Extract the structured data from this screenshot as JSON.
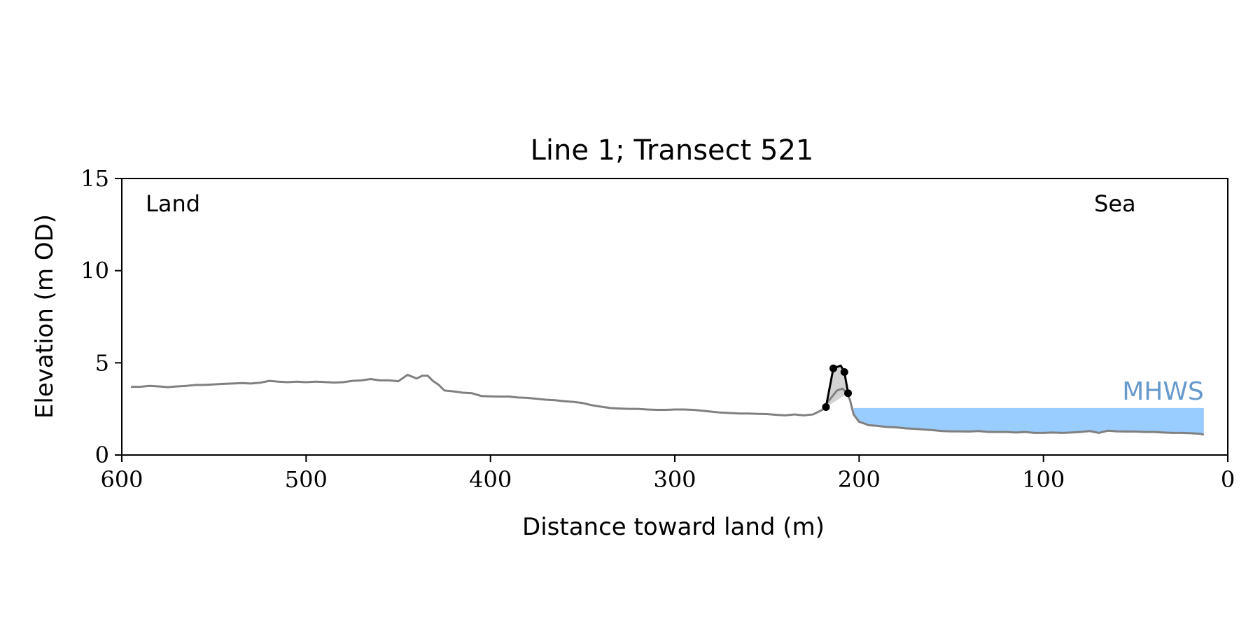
{
  "chart_data": {
    "type": "line",
    "title": "Line 1; Transect 521",
    "xlabel": "Distance toward land (m)",
    "ylabel": "Elevation (m OD)",
    "xlim": [
      600,
      0
    ],
    "ylim": [
      0,
      15
    ],
    "x_reversed": true,
    "xticks": [
      600,
      500,
      400,
      300,
      200,
      100,
      0
    ],
    "yticks": [
      0,
      5,
      10,
      15
    ],
    "grid": false,
    "annotations": {
      "left": "Land",
      "right": "Sea",
      "mhws": "MHWS"
    },
    "colors": {
      "profile": "#808080",
      "dune": "#000000",
      "dune_fill": "#d3d3d3",
      "mhws_fill": "#99ccff",
      "mhws_text": "#6699cc"
    },
    "mhws": {
      "elevation": 2.55,
      "x_from": 203,
      "x_to": 13
    },
    "series": [
      {
        "role": "profile",
        "x": [
          595,
          590,
          585,
          580,
          575,
          570,
          565,
          560,
          555,
          550,
          545,
          540,
          535,
          530,
          525,
          520,
          515,
          510,
          505,
          500,
          495,
          490,
          485,
          480,
          475,
          470,
          465,
          460,
          455,
          450,
          445,
          440,
          437,
          434,
          431,
          428,
          425,
          420,
          415,
          410,
          405,
          400,
          395,
          390,
          385,
          380,
          375,
          370,
          365,
          360,
          355,
          350,
          345,
          340,
          335,
          330,
          325,
          320,
          315,
          310,
          305,
          300,
          295,
          290,
          285,
          280,
          275,
          270,
          265,
          260,
          255,
          250,
          245,
          240,
          235,
          230,
          225,
          220,
          216,
          212,
          209,
          207,
          205,
          203,
          200,
          197,
          195,
          190,
          185,
          180,
          175,
          170,
          165,
          160,
          155,
          150,
          145,
          140,
          135,
          130,
          125,
          120,
          115,
          110,
          105,
          100,
          95,
          90,
          85,
          80,
          75,
          70,
          65,
          60,
          55,
          50,
          45,
          40,
          35,
          30,
          25,
          20,
          15,
          13
        ],
        "y": [
          3.7,
          3.7,
          3.75,
          3.72,
          3.68,
          3.72,
          3.75,
          3.8,
          3.8,
          3.83,
          3.86,
          3.88,
          3.9,
          3.88,
          3.92,
          4.02,
          3.98,
          3.95,
          3.98,
          3.95,
          3.98,
          3.96,
          3.93,
          3.95,
          4.02,
          4.05,
          4.12,
          4.05,
          4.05,
          4.0,
          4.35,
          4.15,
          4.3,
          4.3,
          4.0,
          3.8,
          3.5,
          3.45,
          3.38,
          3.35,
          3.2,
          3.18,
          3.17,
          3.17,
          3.12,
          3.1,
          3.05,
          3.0,
          2.97,
          2.92,
          2.88,
          2.82,
          2.7,
          2.62,
          2.55,
          2.52,
          2.5,
          2.5,
          2.47,
          2.45,
          2.45,
          2.47,
          2.47,
          2.45,
          2.4,
          2.35,
          2.3,
          2.28,
          2.25,
          2.25,
          2.23,
          2.22,
          2.18,
          2.15,
          2.2,
          2.15,
          2.2,
          2.45,
          3.0,
          3.5,
          3.6,
          3.4,
          3.0,
          2.2,
          1.8,
          1.7,
          1.62,
          1.58,
          1.52,
          1.5,
          1.45,
          1.42,
          1.38,
          1.35,
          1.3,
          1.28,
          1.28,
          1.27,
          1.3,
          1.25,
          1.25,
          1.25,
          1.22,
          1.25,
          1.2,
          1.2,
          1.22,
          1.2,
          1.22,
          1.25,
          1.3,
          1.2,
          1.32,
          1.28,
          1.27,
          1.27,
          1.25,
          1.25,
          1.22,
          1.2,
          1.2,
          1.18,
          1.15,
          1.1
        ]
      },
      {
        "role": "dune",
        "x": [
          218,
          214,
          210,
          208,
          206
        ],
        "y": [
          2.6,
          4.7,
          4.85,
          4.5,
          3.35
        ]
      }
    ],
    "markers": {
      "x": [
        218,
        214,
        208,
        206
      ],
      "y": [
        2.6,
        4.7,
        4.5,
        3.35
      ]
    }
  }
}
